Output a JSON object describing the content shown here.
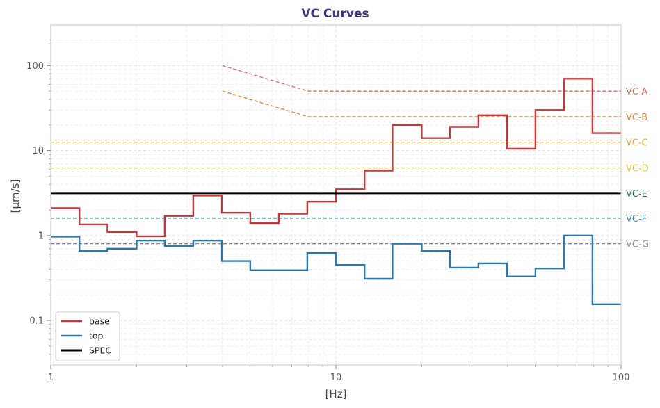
{
  "chart_data": {
    "type": "line",
    "title": "VC Curves",
    "xlabel": "[Hz]",
    "ylabel": "[µm/s]",
    "xscale": "log",
    "yscale": "log",
    "xlim": [
      1,
      100
    ],
    "ylim": [
      0.03,
      300
    ],
    "xticks": [
      {
        "value": 1,
        "label": "1"
      },
      {
        "value": 10,
        "label": "10"
      },
      {
        "value": 100,
        "label": "100"
      }
    ],
    "yticks": [
      {
        "value": 0.1,
        "label": "0.1"
      },
      {
        "value": 1,
        "label": "1"
      },
      {
        "value": 10,
        "label": "10"
      },
      {
        "value": 100,
        "label": "100"
      }
    ],
    "grid": true,
    "legend_position": "bottom-left",
    "band_edges": [
      1,
      1.26,
      1.58,
      2,
      2.51,
      3.16,
      3.98,
      5.01,
      6.31,
      7.94,
      10,
      12.6,
      15.8,
      20,
      25.1,
      31.6,
      39.8,
      50.1,
      63.1,
      79.4,
      100
    ],
    "series": [
      {
        "name": "base",
        "color": "#c0393b",
        "style": "step",
        "values": [
          2.1,
          1.35,
          1.1,
          0.98,
          1.7,
          2.95,
          1.85,
          1.4,
          1.8,
          2.5,
          3.5,
          5.8,
          20,
          14,
          19,
          26,
          10.5,
          30,
          70,
          16
        ]
      },
      {
        "name": "top",
        "color": "#2a79a8",
        "style": "step",
        "values": [
          0.97,
          0.66,
          0.7,
          0.87,
          0.75,
          0.87,
          0.5,
          0.39,
          0.39,
          0.62,
          0.45,
          0.31,
          0.8,
          0.66,
          0.42,
          0.47,
          0.33,
          0.41,
          1.0,
          0.155
        ]
      },
      {
        "name": "SPEC",
        "color": "#000000",
        "style": "hline",
        "value": 3.15
      }
    ],
    "vc_lines": [
      {
        "name": "VC-A",
        "color": "#d9735f",
        "value": 50,
        "start_x": 4,
        "start_y": 100,
        "knee_x": 8
      },
      {
        "name": "VC-B",
        "color": "#d98a3a",
        "value": 25,
        "start_x": 4,
        "start_y": 50,
        "knee_x": 8
      },
      {
        "name": "VC-C",
        "color": "#e8a83a",
        "value": 12.5
      },
      {
        "name": "VC-D",
        "color": "#e8c53a",
        "value": 6.25
      },
      {
        "name": "VC-E",
        "color": "#2f6f5a",
        "value": 3.15
      },
      {
        "name": "VC-F",
        "color": "#3a8fb8",
        "value": 1.6
      },
      {
        "name": "VC-G",
        "color": "#8a8aaa",
        "value": 0.8
      }
    ]
  }
}
